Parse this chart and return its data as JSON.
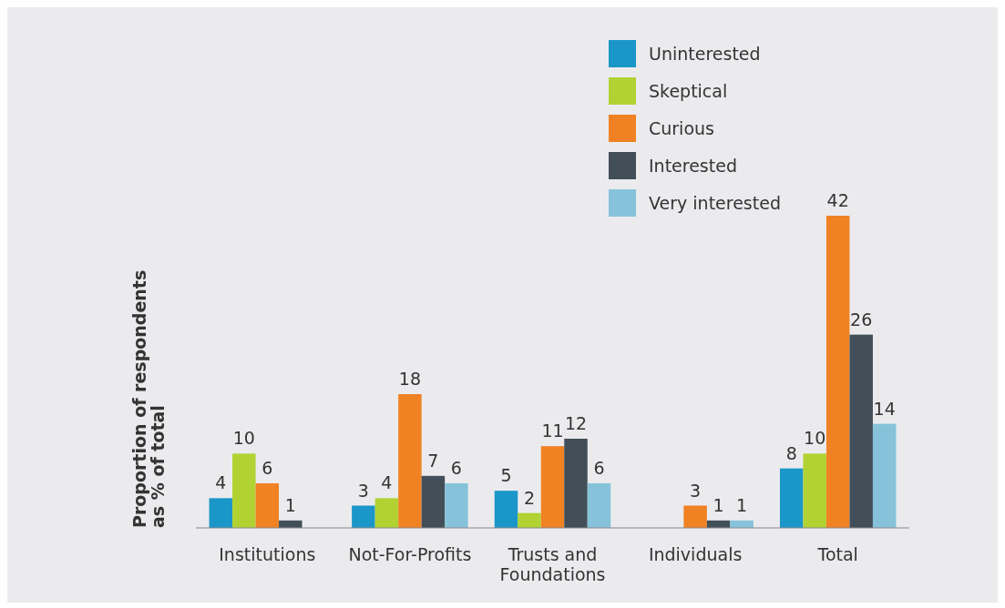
{
  "chart_data": {
    "type": "bar",
    "ylabel": "Proportion of respondents as % of total",
    "categories": [
      "Institutions",
      "Not-For-Profits",
      "Trusts and Foundations",
      "Individuals",
      "Total"
    ],
    "series": [
      {
        "name": "Uninterested",
        "color": "#1b96c8",
        "values": [
          4,
          3,
          5,
          null,
          8
        ]
      },
      {
        "name": "Skeptical",
        "color": "#b1d232",
        "values": [
          10,
          4,
          2,
          null,
          10
        ]
      },
      {
        "name": "Curious",
        "color": "#f08224",
        "values": [
          6,
          18,
          11,
          3,
          42
        ]
      },
      {
        "name": "Interested",
        "color": "#434f58",
        "values": [
          1,
          7,
          12,
          1,
          26
        ]
      },
      {
        "name": "Very interested",
        "color": "#86c3da",
        "values": [
          null,
          6,
          6,
          1,
          14
        ]
      }
    ],
    "data_labels": true,
    "legend": "top right",
    "grid": false
  }
}
